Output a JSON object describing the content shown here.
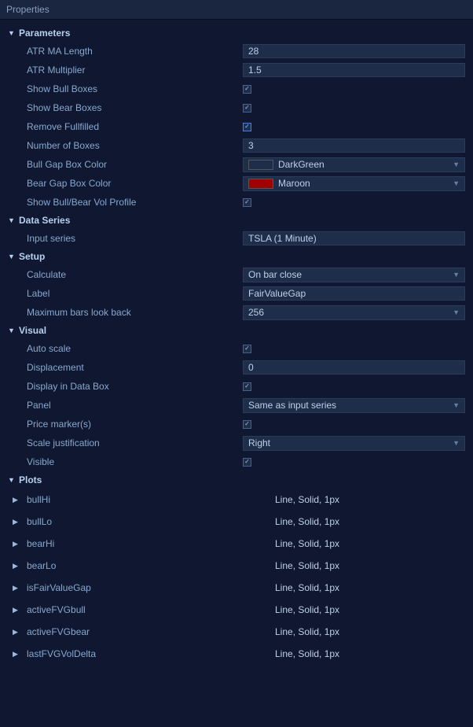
{
  "panelTitle": "Properties",
  "sections": {
    "parameters": {
      "title": "Parameters",
      "rows": {
        "atrMaLength": {
          "label": "ATR MA Length",
          "value": "28"
        },
        "atrMultiplier": {
          "label": "ATR Multiplier",
          "value": "1.5"
        },
        "showBullBoxes": {
          "label": "Show Bull Boxes",
          "checked": true
        },
        "showBearBoxes": {
          "label": "Show Bear Boxes",
          "checked": true
        },
        "removeFullfilled": {
          "label": "Remove Fullfilled",
          "checked": true,
          "highlighted": true
        },
        "numberOfBoxes": {
          "label": "Number of Boxes",
          "value": "3"
        },
        "bullGapColor": {
          "label": "Bull Gap Box Color",
          "colorName": "DarkGreen",
          "colorHex": "#009900"
        },
        "bearGapColor": {
          "label": "Bear Gap Box Color",
          "colorName": "Maroon",
          "colorHex": "#a00000"
        },
        "showVolProfile": {
          "label": "Show Bull/Bear Vol Profile",
          "checked": true
        }
      }
    },
    "dataSeries": {
      "title": "Data Series",
      "inputSeries": {
        "label": "Input series",
        "value": "TSLA (1 Minute)"
      }
    },
    "setup": {
      "title": "Setup",
      "calculate": {
        "label": "Calculate",
        "value": "On bar close"
      },
      "labelRow": {
        "label": "Label",
        "value": "FairValueGap"
      },
      "maxBars": {
        "label": "Maximum bars look back",
        "value": "256"
      }
    },
    "visual": {
      "title": "Visual",
      "autoScale": {
        "label": "Auto scale",
        "checked": true
      },
      "displacement": {
        "label": "Displacement",
        "value": "0"
      },
      "displayDataBox": {
        "label": "Display in Data Box",
        "checked": true
      },
      "panel": {
        "label": "Panel",
        "value": "Same as input series"
      },
      "priceMarker": {
        "label": "Price marker(s)",
        "checked": true
      },
      "scaleJust": {
        "label": "Scale justification",
        "value": "Right"
      },
      "visible": {
        "label": "Visible",
        "checked": true
      }
    },
    "plots": {
      "title": "Plots",
      "items": [
        {
          "name": "bullHi",
          "desc": "Line, Solid, 1px"
        },
        {
          "name": "bullLo",
          "desc": "Line, Solid, 1px"
        },
        {
          "name": "bearHi",
          "desc": "Line, Solid, 1px"
        },
        {
          "name": "bearLo",
          "desc": "Line, Solid, 1px"
        },
        {
          "name": "isFairValueGap",
          "desc": "Line, Solid, 1px"
        },
        {
          "name": "activeFVGbull",
          "desc": "Line, Solid, 1px"
        },
        {
          "name": "activeFVGbear",
          "desc": "Line, Solid, 1px"
        },
        {
          "name": "lastFVGVolDelta",
          "desc": "Line, Solid, 1px"
        }
      ]
    }
  }
}
